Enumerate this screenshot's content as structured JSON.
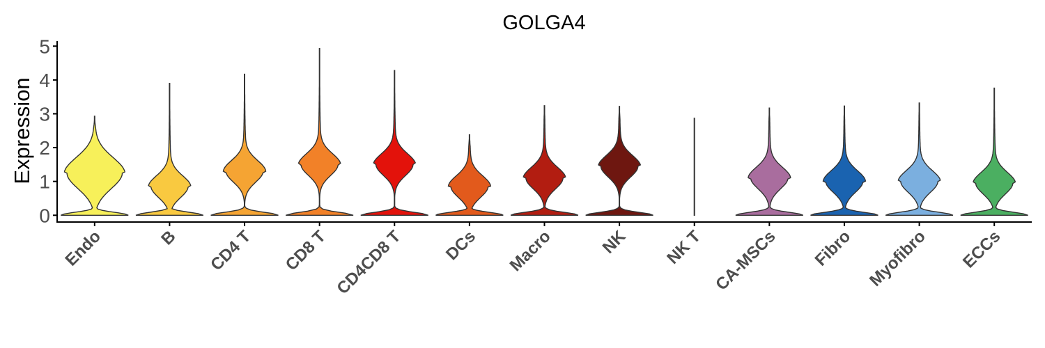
{
  "chart_data": {
    "type": "violin",
    "title": "GOLGA4",
    "xlabel": "",
    "ylabel": "Expression",
    "ylim": [
      -0.2,
      5.15
    ],
    "yticks": [
      "0",
      "1",
      "2",
      "3",
      "4",
      "5"
    ],
    "grid": false,
    "legend": "none",
    "categories": [
      {
        "name": "Endo",
        "color": "#F7F05A",
        "max": 2.93,
        "shape": "broad-unimodal",
        "mode": 1.25
      },
      {
        "name": "B",
        "color": "#F9C940",
        "max": 3.9,
        "shape": "bimodal",
        "mode": 0.85
      },
      {
        "name": "CD4 T",
        "color": "#F5A433",
        "max": 4.17,
        "shape": "bimodal",
        "mode": 1.3
      },
      {
        "name": "CD8 T",
        "color": "#F28128",
        "max": 4.93,
        "shape": "bimodal",
        "mode": 1.5
      },
      {
        "name": "CD4CD8 T",
        "color": "#E3120B",
        "max": 4.28,
        "shape": "bimodal",
        "mode": 1.5
      },
      {
        "name": "DCs",
        "color": "#E25A1C",
        "max": 2.38,
        "shape": "bimodal",
        "mode": 0.85
      },
      {
        "name": "Macro",
        "color": "#B21D11",
        "max": 3.24,
        "shape": "bimodal",
        "mode": 1.1
      },
      {
        "name": "NK",
        "color": "#6E1710",
        "max": 3.22,
        "shape": "bimodal",
        "mode": 1.45
      },
      {
        "name": "NK T",
        "color": "#7B1A12",
        "max": 2.87,
        "shape": "flat",
        "mode": 0.0
      },
      {
        "name": "CA-MSCs",
        "color": "#A96D9E",
        "max": 3.17,
        "shape": "bimodal",
        "mode": 1.1
      },
      {
        "name": "Fibro",
        "color": "#1A63B0",
        "max": 3.23,
        "shape": "bimodal",
        "mode": 1.0
      },
      {
        "name": "Myofibro",
        "color": "#7BAFDF",
        "max": 3.32,
        "shape": "bimodal",
        "mode": 1.0
      },
      {
        "name": "ECCs",
        "color": "#4BAF61",
        "max": 3.76,
        "shape": "bimodal",
        "mode": 0.95
      }
    ]
  }
}
